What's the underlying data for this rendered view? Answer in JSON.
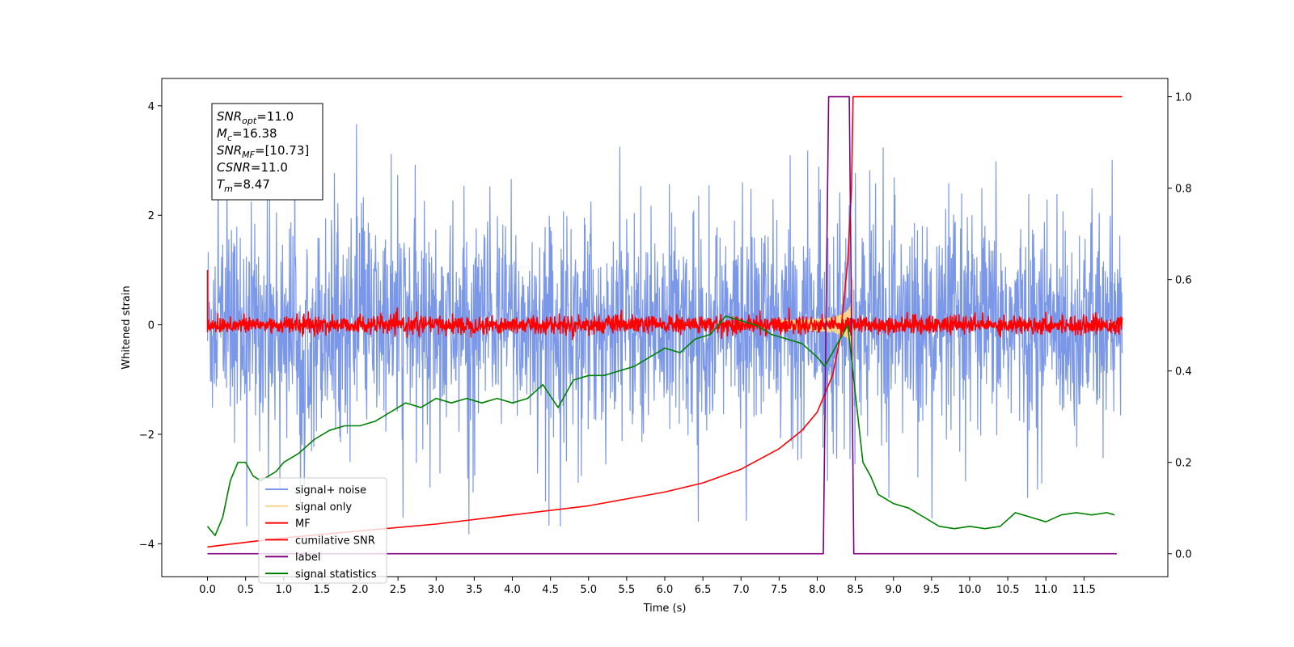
{
  "chart_data": {
    "type": "line",
    "xlabel": "Time (s)",
    "ylabel": "Whitened strain",
    "xlim": [
      -0.6,
      12.6
    ],
    "ylim_left": [
      -4.6,
      4.5
    ],
    "ylim_right": [
      -0.05,
      1.04
    ],
    "x_ticks": [
      "0.0",
      "0.5",
      "1.0",
      "1.5",
      "2.0",
      "2.5",
      "3.0",
      "3.5",
      "4.0",
      "4.5",
      "5.0",
      "5.5",
      "6.0",
      "6.5",
      "7.0",
      "7.5",
      "8.0",
      "8.5",
      "9.0",
      "9.5",
      "10.0",
      "10.5",
      "11.0",
      "11.5"
    ],
    "y_ticks_left": [
      "4",
      "2",
      "0",
      "−2",
      "−4"
    ],
    "y_ticks_right": [
      "1.0",
      "0.8",
      "0.6",
      "0.4",
      "0.2",
      "0.0"
    ],
    "annotation": {
      "lines": [
        {
          "base": "SNR",
          "sub": "opt",
          "value": "=11.0"
        },
        {
          "base": "M",
          "sub": "c",
          "value": "=16.38"
        },
        {
          "base": "SNR",
          "sub": "MF",
          "value": "=[10.73]"
        },
        {
          "base": "CSNR",
          "sub": "",
          "value": "=11.0"
        },
        {
          "base": "T",
          "sub": "m",
          "value": "=8.47"
        }
      ]
    },
    "legend": {
      "placement": "lower-left",
      "entries": [
        {
          "label": "signal+ noise",
          "color": "#7b97e8"
        },
        {
          "label": "signal only",
          "color": "#f7d78f"
        },
        {
          "label": "MF",
          "color": "#ff0000"
        },
        {
          "label": "cumilative SNR",
          "color": "#ff0000"
        },
        {
          "label": "label",
          "color": "#800080"
        },
        {
          "label": "signal statistics",
          "color": "#008000"
        }
      ]
    },
    "series": [
      {
        "name": "signal+ noise",
        "axis": "left",
        "color": "#7b97e8",
        "kind": "noise",
        "amplitude": 1.0,
        "x_range": [
          0.0,
          12.0
        ]
      },
      {
        "name": "signal only",
        "axis": "left",
        "color": "#f7d78f",
        "kind": "chirp",
        "x_range": [
          7.5,
          8.47
        ],
        "peak": 0.9
      },
      {
        "name": "MF",
        "axis": "left",
        "color": "#ff0000",
        "kind": "noise",
        "amplitude": 0.08,
        "x_range": [
          0.0,
          12.0
        ]
      },
      {
        "name": "cumilative SNR",
        "axis": "right",
        "color": "#ff0000",
        "x": [
          0.0,
          0.5,
          1.0,
          2.0,
          3.0,
          4.0,
          5.0,
          5.5,
          6.0,
          6.5,
          7.0,
          7.5,
          7.8,
          8.0,
          8.2,
          8.3,
          8.4,
          8.45,
          8.47,
          8.5,
          9.0,
          10.0,
          11.0,
          12.0
        ],
        "y": [
          0.015,
          0.025,
          0.035,
          0.05,
          0.065,
          0.085,
          0.105,
          0.12,
          0.135,
          0.155,
          0.185,
          0.23,
          0.27,
          0.31,
          0.39,
          0.47,
          0.64,
          0.8,
          1.0,
          1.0,
          1.0,
          1.0,
          1.0,
          1.0
        ]
      },
      {
        "name": "label",
        "axis": "right",
        "color": "#800080",
        "x": [
          0.0,
          8.08,
          8.15,
          8.42,
          8.48,
          11.93
        ],
        "y": [
          0.0,
          0.0,
          1.0,
          1.0,
          0.0,
          0.0
        ]
      },
      {
        "name": "signal statistics",
        "axis": "right",
        "color": "#008000",
        "x": [
          0.0,
          0.1,
          0.2,
          0.3,
          0.4,
          0.5,
          0.6,
          0.7,
          0.8,
          0.9,
          1.0,
          1.2,
          1.4,
          1.6,
          1.8,
          2.0,
          2.2,
          2.4,
          2.6,
          2.8,
          3.0,
          3.2,
          3.4,
          3.6,
          3.8,
          4.0,
          4.2,
          4.4,
          4.6,
          4.8,
          5.0,
          5.2,
          5.4,
          5.6,
          5.8,
          6.0,
          6.2,
          6.4,
          6.6,
          6.8,
          7.0,
          7.2,
          7.4,
          7.6,
          7.8,
          8.0,
          8.1,
          8.2,
          8.3,
          8.4,
          8.5,
          8.6,
          8.7,
          8.8,
          9.0,
          9.2,
          9.4,
          9.6,
          9.8,
          10.0,
          10.2,
          10.4,
          10.6,
          10.8,
          11.0,
          11.2,
          11.4,
          11.6,
          11.8,
          11.9
        ],
        "y": [
          0.06,
          0.04,
          0.08,
          0.16,
          0.2,
          0.2,
          0.17,
          0.16,
          0.17,
          0.18,
          0.2,
          0.22,
          0.25,
          0.27,
          0.28,
          0.28,
          0.29,
          0.31,
          0.33,
          0.32,
          0.34,
          0.33,
          0.34,
          0.33,
          0.34,
          0.33,
          0.34,
          0.37,
          0.32,
          0.38,
          0.39,
          0.39,
          0.4,
          0.41,
          0.43,
          0.45,
          0.44,
          0.47,
          0.48,
          0.52,
          0.51,
          0.5,
          0.48,
          0.47,
          0.46,
          0.43,
          0.41,
          0.44,
          0.47,
          0.5,
          0.35,
          0.2,
          0.17,
          0.13,
          0.11,
          0.1,
          0.08,
          0.06,
          0.055,
          0.06,
          0.055,
          0.06,
          0.09,
          0.08,
          0.07,
          0.085,
          0.09,
          0.085,
          0.09,
          0.085
        ]
      }
    ]
  }
}
